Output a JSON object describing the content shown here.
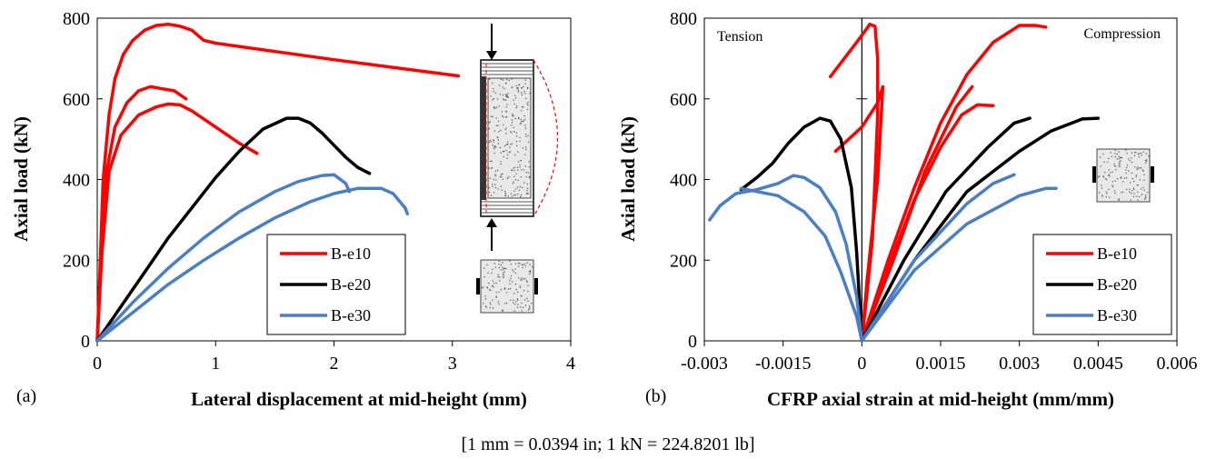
{
  "caption": "[1 mm = 0.0394 in; 1 kN = 224.8201 lb]",
  "colors": {
    "B-e10": "#ff0000",
    "B-e20": "#000000",
    "B-e30": "#4a7fc8"
  },
  "chart_data": [
    {
      "type": "line",
      "panel_label": "(a)",
      "xlabel": "Lateral displacement at mid-height (mm)",
      "ylabel": "Axial load (kN)",
      "xlim": [
        0,
        4
      ],
      "ylim": [
        0,
        800
      ],
      "xticks": [
        "0",
        "1",
        "2",
        "3",
        "4"
      ],
      "yticks": [
        "0",
        "200",
        "400",
        "600",
        "800"
      ],
      "legend": {
        "placement": "bottom-right",
        "entries": [
          "B-e10",
          "B-e20",
          "B-e30"
        ]
      },
      "series": [
        {
          "name": "B-e10",
          "values": [
            [
              0,
              0
            ],
            [
              0.02,
              150
            ],
            [
              0.05,
              400
            ],
            [
              0.1,
              560
            ],
            [
              0.15,
              650
            ],
            [
              0.22,
              710
            ],
            [
              0.3,
              745
            ],
            [
              0.4,
              770
            ],
            [
              0.5,
              782
            ],
            [
              0.6,
              785
            ],
            [
              0.7,
              780
            ],
            [
              0.8,
              770
            ],
            [
              0.9,
              745
            ],
            [
              1.0,
              738
            ],
            [
              2.0,
              697
            ],
            [
              3.05,
              657
            ]
          ]
        },
        {
          "name": "B-e10",
          "values": [
            [
              0,
              0
            ],
            [
              0.03,
              200
            ],
            [
              0.08,
              420
            ],
            [
              0.15,
              530
            ],
            [
              0.25,
              590
            ],
            [
              0.35,
              620
            ],
            [
              0.45,
              630
            ],
            [
              0.55,
              625
            ],
            [
              0.65,
              620
            ],
            [
              0.75,
              600
            ]
          ]
        },
        {
          "name": "B-e10",
          "values": [
            [
              0,
              0
            ],
            [
              0.04,
              220
            ],
            [
              0.1,
              420
            ],
            [
              0.2,
              510
            ],
            [
              0.35,
              560
            ],
            [
              0.5,
              580
            ],
            [
              0.6,
              587
            ],
            [
              0.7,
              585
            ],
            [
              0.8,
              570
            ],
            [
              1.0,
              530
            ],
            [
              1.2,
              490
            ],
            [
              1.35,
              465
            ]
          ]
        },
        {
          "name": "B-e20",
          "values": [
            [
              0,
              0
            ],
            [
              0.2,
              85
            ],
            [
              0.4,
              170
            ],
            [
              0.6,
              255
            ],
            [
              0.8,
              330
            ],
            [
              1.0,
              405
            ],
            [
              1.2,
              470
            ],
            [
              1.4,
              525
            ],
            [
              1.6,
              552
            ],
            [
              1.7,
              552
            ],
            [
              1.8,
              540
            ],
            [
              1.9,
              515
            ],
            [
              2.0,
              485
            ],
            [
              2.1,
              455
            ],
            [
              2.2,
              430
            ],
            [
              2.3,
              415
            ]
          ]
        },
        {
          "name": "B-e30",
          "values": [
            [
              0,
              0
            ],
            [
              0.3,
              95
            ],
            [
              0.6,
              180
            ],
            [
              0.9,
              255
            ],
            [
              1.2,
              320
            ],
            [
              1.5,
              370
            ],
            [
              1.7,
              395
            ],
            [
              1.9,
              410
            ],
            [
              2.0,
              412
            ],
            [
              2.1,
              390
            ],
            [
              2.13,
              370
            ]
          ]
        },
        {
          "name": "B-e30",
          "values": [
            [
              0,
              0
            ],
            [
              0.3,
              70
            ],
            [
              0.6,
              140
            ],
            [
              0.9,
              200
            ],
            [
              1.2,
              255
            ],
            [
              1.5,
              305
            ],
            [
              1.8,
              345
            ],
            [
              2.0,
              365
            ],
            [
              2.2,
              378
            ],
            [
              2.4,
              378
            ],
            [
              2.5,
              365
            ],
            [
              2.6,
              330
            ],
            [
              2.62,
              315
            ]
          ]
        }
      ]
    },
    {
      "type": "line",
      "panel_label": "(b)",
      "xlabel": "CFRP axial strain at mid-height (mm/mm)",
      "ylabel": "Axial load (kN)",
      "xlim": [
        -0.003,
        0.006
      ],
      "ylim": [
        0,
        800
      ],
      "xticks": [
        "-0.003",
        "-0.0015",
        "0",
        "0.0015",
        "0.003",
        "0.0045",
        "0.006"
      ],
      "yticks": [
        "0",
        "200",
        "400",
        "600",
        "800"
      ],
      "annotations": [
        "Tension",
        "Compression"
      ],
      "legend": {
        "placement": "bottom-right",
        "entries": [
          "B-e10",
          "B-e20",
          "B-e30"
        ]
      },
      "series": [
        {
          "name": "B-e10",
          "values": [
            [
              -0.0006,
              655
            ],
            [
              -0.0001,
              740
            ],
            [
              0.0001,
              775
            ],
            [
              0.00015,
              785
            ],
            [
              0.00025,
              780
            ],
            [
              0.0003,
              700
            ],
            [
              0.0003,
              560
            ],
            [
              0.00025,
              400
            ],
            [
              0.0002,
              250
            ],
            [
              0.0001,
              120
            ],
            [
              0,
              0
            ],
            [
              0.0005,
              200
            ],
            [
              0.001,
              380
            ],
            [
              0.0015,
              540
            ],
            [
              0.002,
              660
            ],
            [
              0.0025,
              740
            ],
            [
              0.003,
              782
            ],
            [
              0.0033,
              782
            ],
            [
              0.0035,
              778
            ]
          ]
        },
        {
          "name": "B-e10",
          "values": [
            [
              -0.0005,
              470
            ],
            [
              0,
              530
            ],
            [
              0.0003,
              590
            ],
            [
              0.0004,
              630
            ],
            [
              0.0003,
              400
            ],
            [
              0.0001,
              150
            ],
            [
              0,
              0
            ],
            [
              0.0006,
              200
            ],
            [
              0.0012,
              420
            ],
            [
              0.0018,
              580
            ],
            [
              0.0021,
              630
            ]
          ]
        },
        {
          "name": "B-e10",
          "values": [
            [
              0,
              0
            ],
            [
              0.0005,
              180
            ],
            [
              0.001,
              350
            ],
            [
              0.0015,
              480
            ],
            [
              0.0019,
              560
            ],
            [
              0.0022,
              585
            ],
            [
              0.0025,
              583
            ]
          ]
        },
        {
          "name": "B-e20",
          "values": [
            [
              -0.0023,
              375
            ],
            [
              -0.002,
              405
            ],
            [
              -0.0017,
              440
            ],
            [
              -0.0014,
              490
            ],
            [
              -0.0011,
              530
            ],
            [
              -0.0008,
              552
            ],
            [
              -0.0006,
              545
            ],
            [
              -0.0004,
              500
            ],
            [
              -0.0002,
              380
            ],
            [
              -0.0001,
              220
            ],
            [
              0,
              0
            ],
            [
              0.0008,
              200
            ],
            [
              0.0016,
              370
            ],
            [
              0.0024,
              480
            ],
            [
              0.0029,
              540
            ],
            [
              0.0032,
              552
            ]
          ]
        },
        {
          "name": "B-e20",
          "values": [
            [
              0,
              0
            ],
            [
              0.001,
              200
            ],
            [
              0.002,
              370
            ],
            [
              0.003,
              470
            ],
            [
              0.0036,
              520
            ],
            [
              0.0042,
              550
            ],
            [
              0.0045,
              552
            ]
          ]
        },
        {
          "name": "B-e30",
          "values": [
            [
              -0.0029,
              300
            ],
            [
              -0.0027,
              335
            ],
            [
              -0.0024,
              365
            ],
            [
              -0.002,
              375
            ],
            [
              -0.0016,
              390
            ],
            [
              -0.0013,
              410
            ],
            [
              -0.0011,
              405
            ],
            [
              -0.0008,
              380
            ],
            [
              -0.0005,
              320
            ],
            [
              -0.0003,
              240
            ],
            [
              -0.0001,
              110
            ],
            [
              0,
              0
            ],
            [
              0.001,
              200
            ],
            [
              0.002,
              340
            ],
            [
              0.0025,
              390
            ],
            [
              0.0029,
              412
            ]
          ]
        },
        {
          "name": "B-e30",
          "values": [
            [
              -0.0023,
              378
            ],
            [
              -0.0016,
              360
            ],
            [
              -0.0011,
              320
            ],
            [
              -0.0007,
              260
            ],
            [
              -0.0004,
              170
            ],
            [
              -0.0001,
              60
            ],
            [
              0,
              0
            ],
            [
              0.001,
              175
            ],
            [
              0.002,
              290
            ],
            [
              0.003,
              360
            ],
            [
              0.0035,
              378
            ],
            [
              0.0037,
              378
            ]
          ]
        }
      ]
    }
  ]
}
